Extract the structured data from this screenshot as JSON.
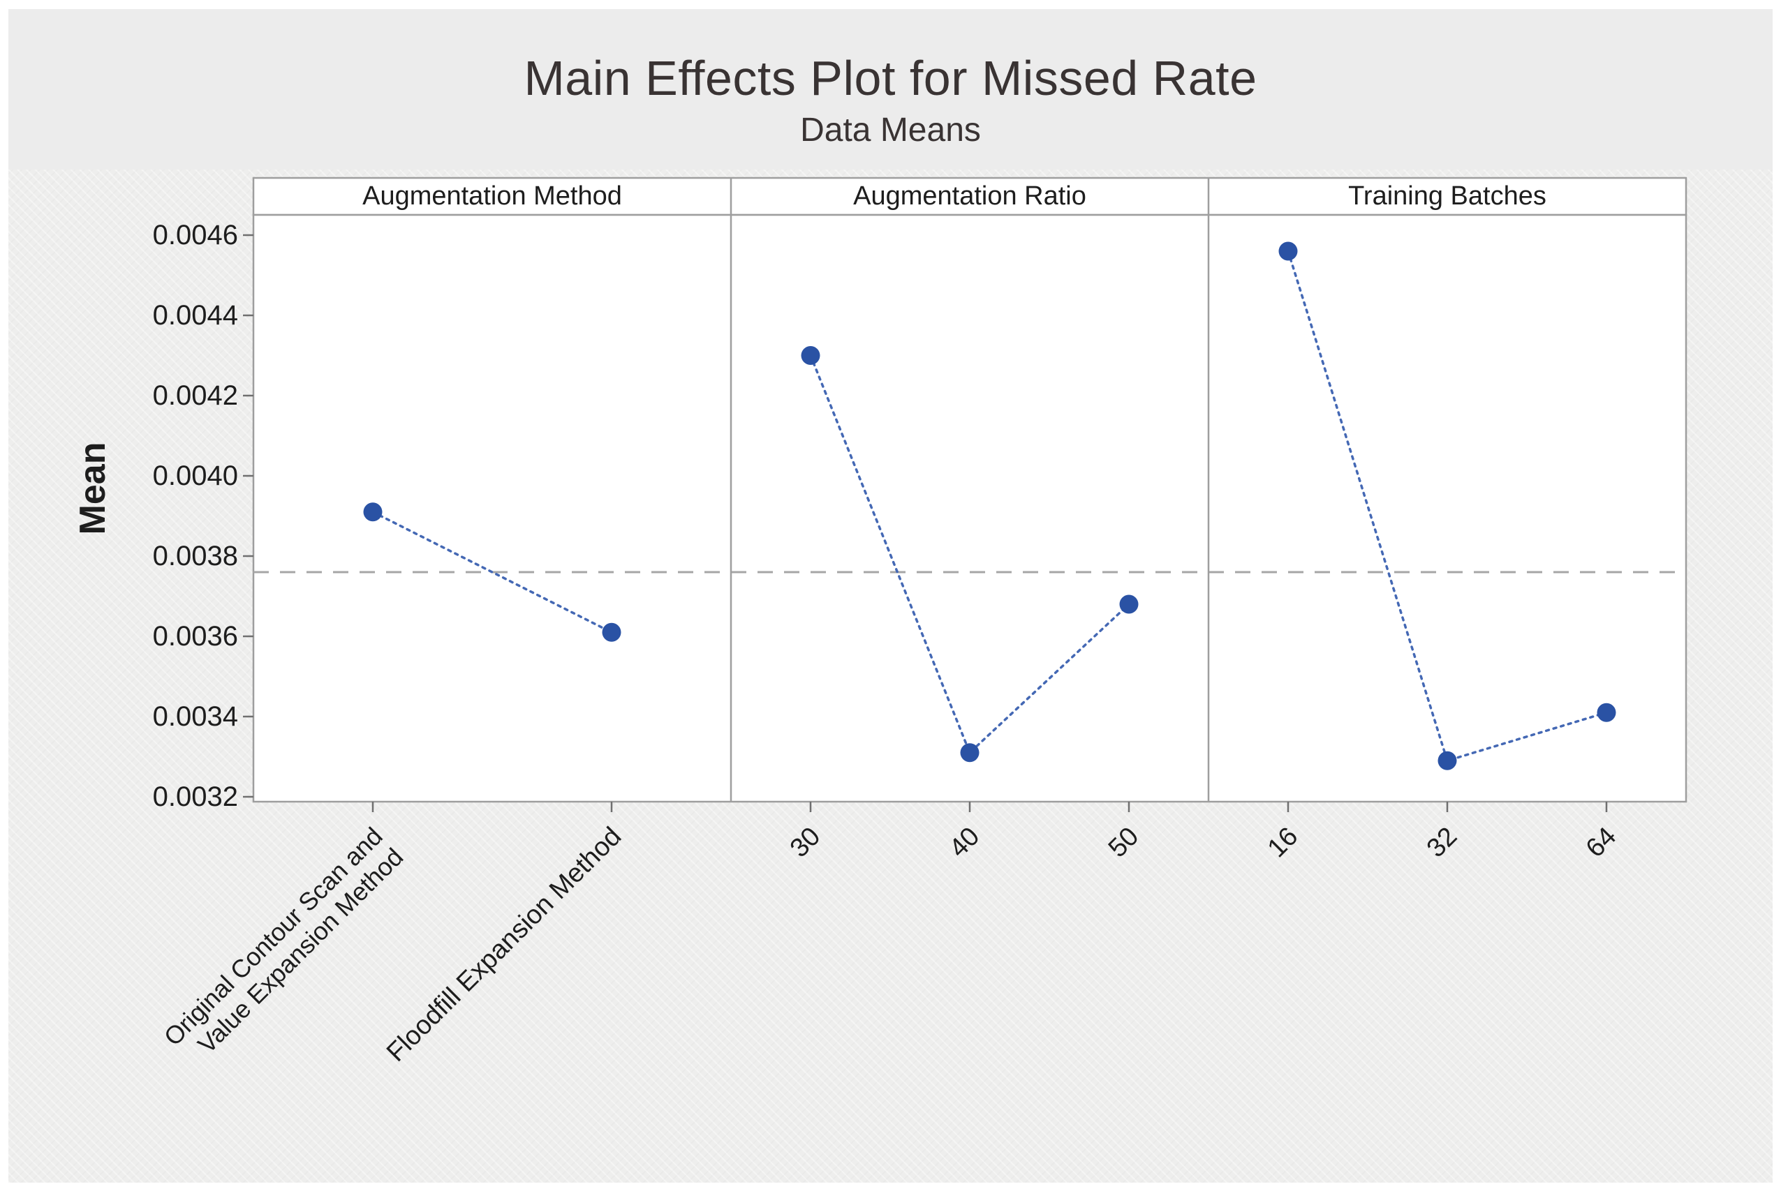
{
  "chart_data": {
    "type": "line",
    "title": "Main Effects Plot for Missed Rate",
    "subtitle": "Data Means",
    "ylabel": "Mean",
    "xlabel": "",
    "ylim": [
      0.0032,
      0.0046
    ],
    "ytick_step": 0.0002,
    "ytick_labels": [
      "0.0046",
      "0.0044",
      "0.0042",
      "0.0040",
      "0.0038",
      "0.0036",
      "0.0034",
      "0.0032"
    ],
    "overall_mean_line": 0.00376,
    "grid": false,
    "legend_position": "none",
    "panels": [
      {
        "header": "Augmentation Method",
        "categories": [
          "Original Contour Scan and\nValue Expansion Method",
          "Floodfill Expansion Method"
        ],
        "values": [
          0.00391,
          0.00361
        ]
      },
      {
        "header": "Augmentation Ratio",
        "categories": [
          "30",
          "40",
          "50"
        ],
        "values": [
          0.0043,
          0.00331,
          0.00368
        ]
      },
      {
        "header": "Training Batches",
        "categories": [
          "16",
          "32",
          "64"
        ],
        "values": [
          0.00456,
          0.00329,
          0.00341
        ]
      }
    ],
    "colors": {
      "marker": "#2a52a4",
      "line": "#4468b4",
      "mean_line": "#a6a6a6",
      "frame": "#9e9e9e",
      "tick": "#6f6f6f",
      "text": "#1d1d1d",
      "title_text": "#393333",
      "panel_fill": "#ffffff",
      "canvas_fill": "#ececec",
      "plot_region_fill": "#eeeeed"
    }
  }
}
